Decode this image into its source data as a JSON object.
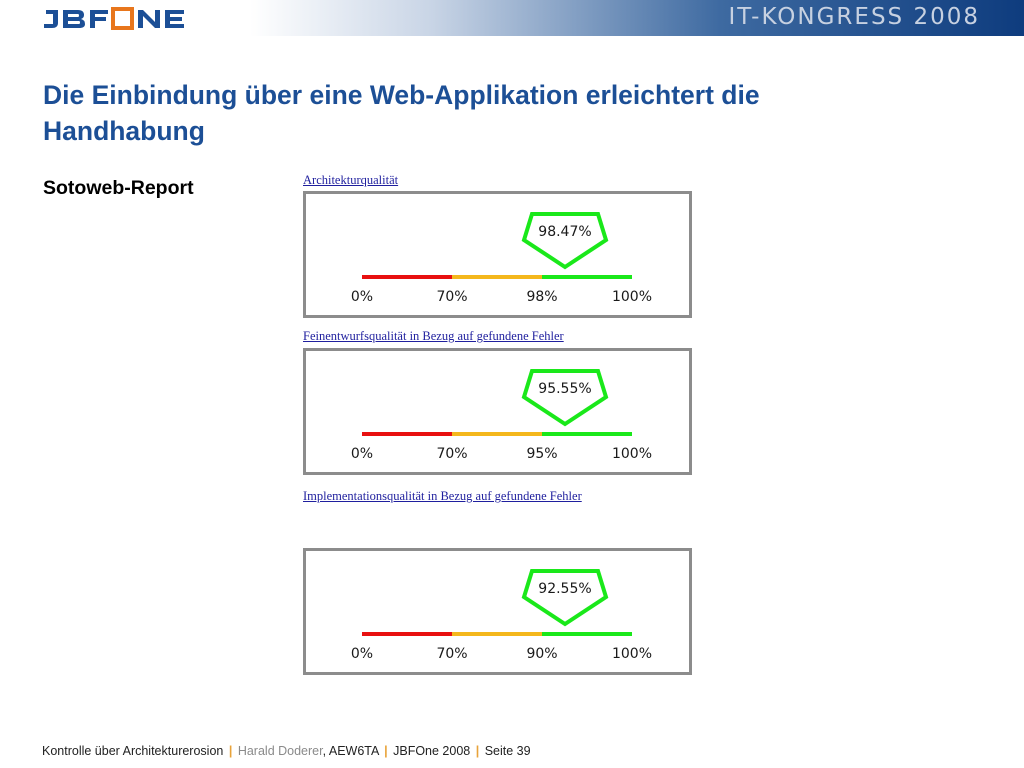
{
  "header": {
    "logo_text": "JBFOne",
    "event": "IT-KONGRESS 2008"
  },
  "slide": {
    "title": "Die Einbindung über eine Web-Applikation erleichtert die Handhabung",
    "subtitle": "Sotoweb-Report"
  },
  "colors": {
    "title_blue": "#1c4f96",
    "link_blue": "#1f1f9e",
    "red": "#e81010",
    "orange": "#f4b71c",
    "green": "#1ae81a",
    "frame_grey": "#8c8c8c"
  },
  "gauges": [
    {
      "label": "Architekturqualität",
      "value_text": "98.47%",
      "value": 98.47,
      "ticks": [
        "0%",
        "70%",
        "98%",
        "100%"
      ],
      "segments": [
        {
          "from": 0,
          "to": 70,
          "color": "red"
        },
        {
          "from": 70,
          "to": 98,
          "color": "orange"
        },
        {
          "from": 98,
          "to": 100,
          "color": "green"
        }
      ]
    },
    {
      "label": "Feinentwurfsqualität in Bezug auf gefundene Fehler",
      "value_text": "95.55%",
      "value": 95.55,
      "ticks": [
        "0%",
        "70%",
        "95%",
        "100%"
      ],
      "segments": [
        {
          "from": 0,
          "to": 70,
          "color": "red"
        },
        {
          "from": 70,
          "to": 95,
          "color": "orange"
        },
        {
          "from": 95,
          "to": 100,
          "color": "green"
        }
      ]
    },
    {
      "label": "Implementationsqualität in Bezug auf gefundene Fehler",
      "value_text": "92.55%",
      "value": 92.55,
      "ticks": [
        "0%",
        "70%",
        "90%",
        "100%"
      ],
      "segments": [
        {
          "from": 0,
          "to": 70,
          "color": "red"
        },
        {
          "from": 70,
          "to": 90,
          "color": "orange"
        },
        {
          "from": 90,
          "to": 100,
          "color": "green"
        }
      ]
    }
  ],
  "footer": {
    "topic": "Kontrolle über Architekturerosion",
    "author": "Harald Doderer",
    "company": "AEW6TA",
    "event": "JBFOne 2008",
    "page": "Seite 39",
    "separator": "|"
  }
}
